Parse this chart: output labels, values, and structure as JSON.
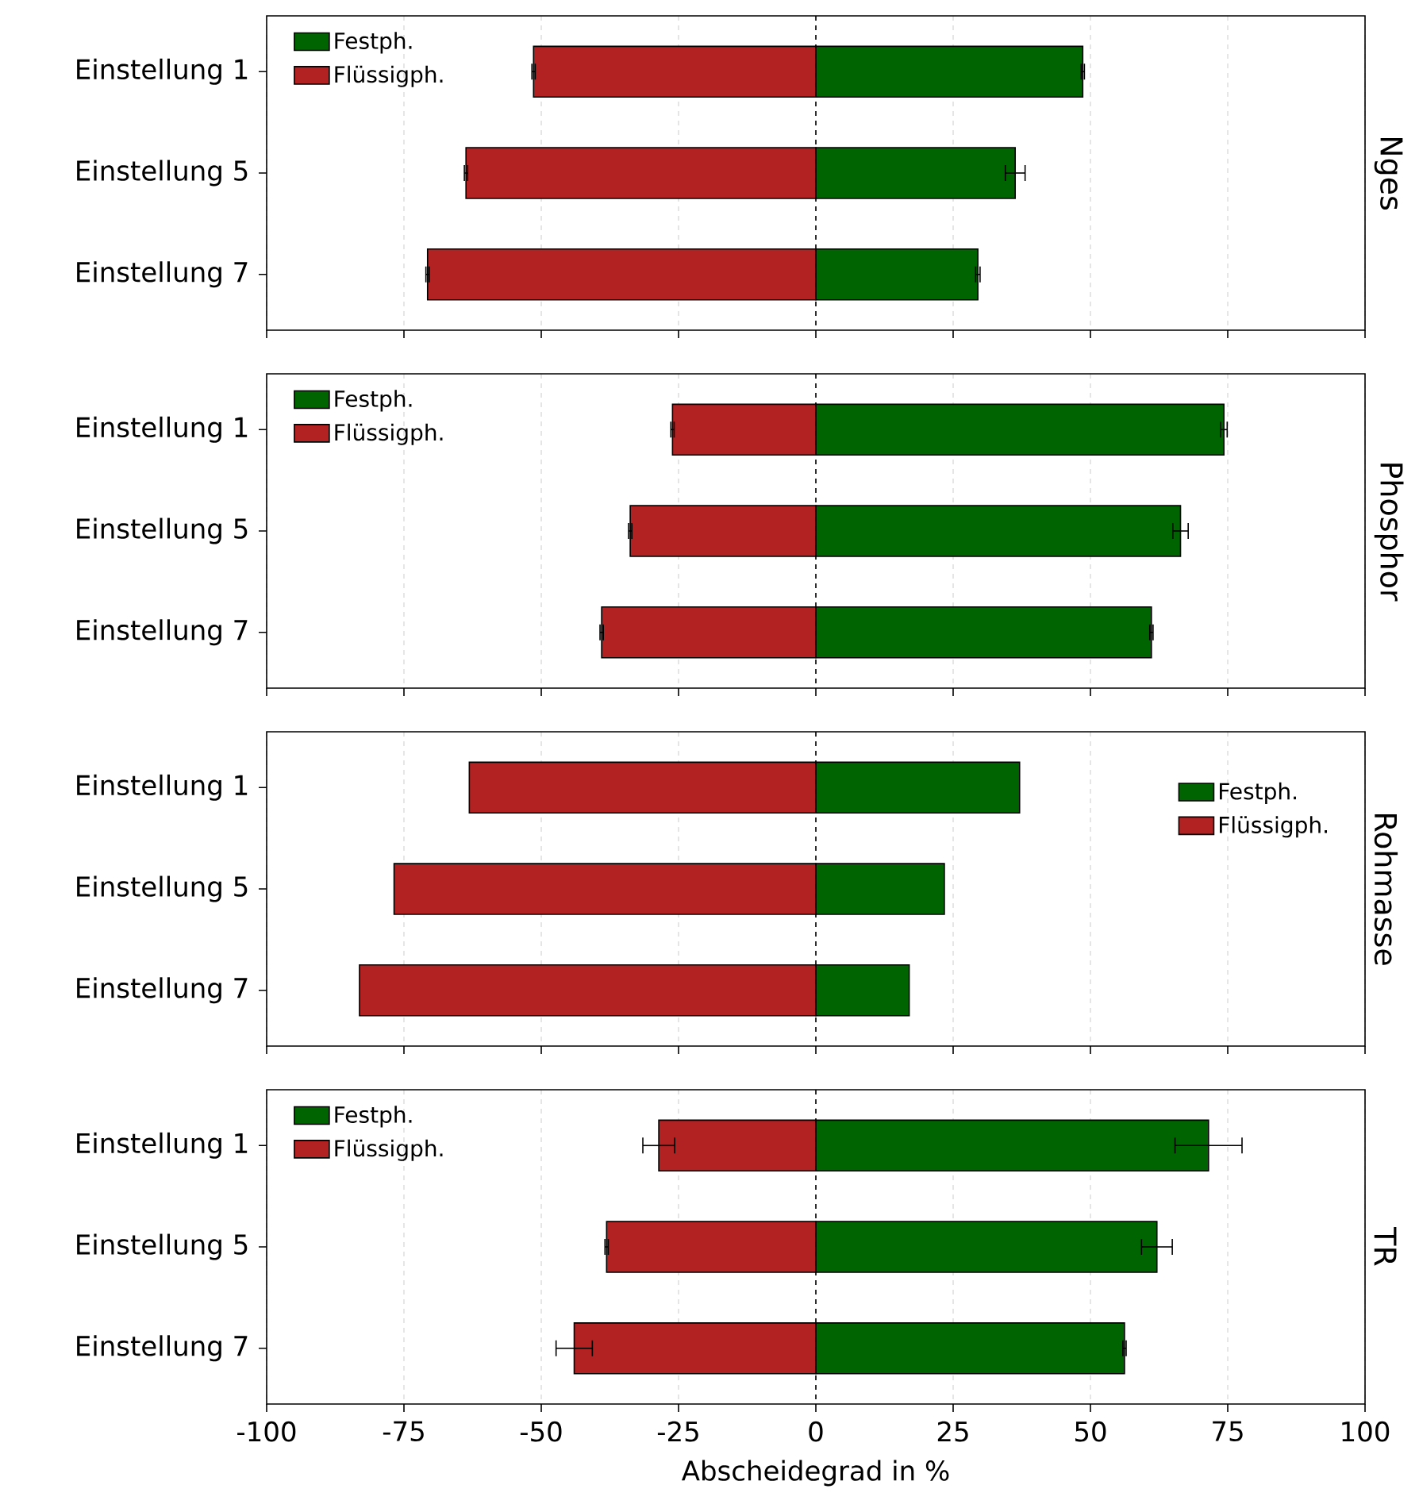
{
  "chart_data": [
    {
      "type": "bar",
      "orientation": "horizontal",
      "stacked": true,
      "y2label": "Nges",
      "categories": [
        "Einstellung 1",
        "Einstellung 5",
        "Einstellung 7"
      ],
      "series": [
        {
          "name": "Festph.",
          "color": "#006400",
          "values": [
            48.6,
            36.3,
            29.5
          ],
          "errors": [
            0.3,
            1.8,
            0.4
          ]
        },
        {
          "name": "Flüssigph.",
          "color": "#b22222",
          "values": [
            -51.4,
            -63.7,
            -70.7
          ],
          "errors": [
            0.3,
            0.3,
            0.3
          ]
        }
      ],
      "xlim": [
        -100,
        100
      ],
      "xticks": [
        -100,
        -75,
        -50,
        -25,
        0,
        25,
        50,
        75,
        100
      ],
      "grid": "x",
      "legend": "top left",
      "tick_labels": "y",
      "ref_lines": [
        {
          "axis": "x",
          "value": 0,
          "line_style": "dashed"
        }
      ]
    },
    {
      "type": "bar",
      "orientation": "horizontal",
      "stacked": true,
      "y2label": "Phosphor",
      "categories": [
        "Einstellung 1",
        "Einstellung 5",
        "Einstellung 7"
      ],
      "series": [
        {
          "name": "Festph.",
          "color": "#006400",
          "values": [
            74.3,
            66.4,
            61.1
          ],
          "errors": [
            0.6,
            1.4,
            0.3
          ]
        },
        {
          "name": "Flüssigph.",
          "color": "#b22222",
          "values": [
            -26.1,
            -33.8,
            -39.0
          ],
          "errors": [
            0.3,
            0.3,
            0.3
          ]
        }
      ],
      "xlim": [
        -100,
        100
      ],
      "xticks": [
        -100,
        -75,
        -50,
        -25,
        0,
        25,
        50,
        75,
        100
      ],
      "grid": "x",
      "legend": "top left",
      "tick_labels": "y",
      "ref_lines": [
        {
          "axis": "x",
          "value": 0,
          "line_style": "dashed"
        }
      ]
    },
    {
      "type": "bar",
      "orientation": "horizontal",
      "stacked": true,
      "y2label": "Rohmasse",
      "categories": [
        "Einstellung 1",
        "Einstellung 5",
        "Einstellung 7"
      ],
      "series": [
        {
          "name": "Festph.",
          "color": "#006400",
          "values": [
            37.1,
            23.4,
            17.0
          ]
        },
        {
          "name": "Flüssigph.",
          "color": "#b22222",
          "values": [
            -63.1,
            -76.8,
            -83.1
          ]
        }
      ],
      "xlim": [
        -100,
        100
      ],
      "xticks": [
        -100,
        -75,
        -50,
        -25,
        0,
        25,
        50,
        75,
        100
      ],
      "grid": "x",
      "legend": "top right",
      "tick_labels": "y",
      "ref_lines": [
        {
          "axis": "x",
          "value": 0,
          "line_style": "dashed"
        }
      ]
    },
    {
      "type": "bar",
      "orientation": "horizontal",
      "stacked": true,
      "y2label": "TR",
      "xlabel": "Abscheidegrad in %",
      "categories": [
        "Einstellung 1",
        "Einstellung 5",
        "Einstellung 7"
      ],
      "series": [
        {
          "name": "Festph.",
          "color": "#006400",
          "values": [
            71.5,
            62.1,
            56.2
          ],
          "errors": [
            6.1,
            2.8,
            0.3
          ]
        },
        {
          "name": "Flüssigph.",
          "color": "#b22222",
          "values": [
            -28.6,
            -38.1,
            -44.0
          ],
          "errors": [
            2.9,
            0.3,
            3.3
          ]
        }
      ],
      "xlim": [
        -100,
        100
      ],
      "xticks": [
        -100,
        -75,
        -50,
        -25,
        0,
        25,
        50,
        75,
        100
      ],
      "grid": "x",
      "legend": "top left",
      "ref_lines": [
        {
          "axis": "x",
          "value": 0,
          "line_style": "dashed"
        }
      ]
    }
  ]
}
